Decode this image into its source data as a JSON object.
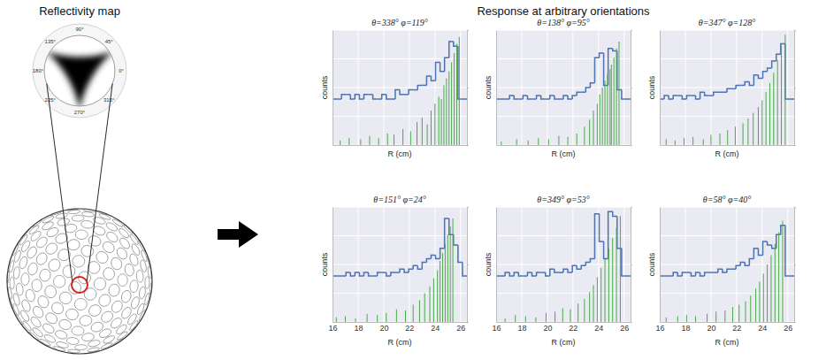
{
  "header": {
    "left_title": "Reflectivity map",
    "right_title": "Response at arbitrary orientations"
  },
  "reflectivity_map": {
    "angle_labels": [
      {
        "value": 0,
        "label": "0°"
      },
      {
        "value": 45,
        "label": "45°"
      },
      {
        "value": 90,
        "label": "90°"
      },
      {
        "value": 135,
        "label": "135°"
      },
      {
        "value": 180,
        "label": "180°"
      },
      {
        "value": 225,
        "label": "225°"
      },
      {
        "value": 270,
        "label": "270°"
      },
      {
        "value": 315,
        "label": "315°"
      }
    ]
  },
  "chart_data": [
    {
      "type": "histogram",
      "title": "θ=338°  φ=119°",
      "xlabel": "R (cm)",
      "ylabel": "counts",
      "xlim": [
        16,
        26.5
      ],
      "xticks": [
        16,
        18,
        20,
        22,
        24,
        26
      ],
      "ylim": [
        0,
        10
      ],
      "yticks": [
        0,
        2.5,
        5,
        7.5,
        10
      ],
      "y2lim": [
        -4,
        6
      ],
      "y2ticks": [
        -4,
        1,
        6
      ],
      "grid": true,
      "tick_labels": false,
      "series": [
        {
          "type": "step",
          "color": "#4c72b0",
          "axis": "y2",
          "bins": [
            16,
            16.35,
            16.7,
            17.05,
            17.4,
            17.75,
            18.1,
            18.45,
            18.8,
            19.15,
            19.5,
            19.85,
            20.2,
            20.55,
            20.9,
            21.25,
            21.6,
            21.95,
            22.3,
            22.65,
            23,
            23.35,
            23.7,
            24.05,
            24.4,
            24.75,
            25.1,
            25.45,
            25.8,
            26.15,
            26.5
          ],
          "counts": [
            0,
            0,
            0.4,
            0.4,
            0,
            0.4,
            0,
            0.4,
            0.4,
            0,
            0,
            0.4,
            0,
            0,
            0.8,
            0.4,
            0.4,
            0.8,
            0.8,
            1.2,
            1.2,
            2,
            1.6,
            3.2,
            2.4,
            3.6,
            5,
            4.6,
            0,
            0
          ]
        },
        {
          "type": "stem",
          "color": "#4aa84a",
          "x": [
            16.6,
            17.3,
            18.2,
            18.9,
            19.6,
            20.3,
            20.8,
            21.5,
            22.1,
            22.6,
            23.0,
            23.4,
            23.7,
            24.0,
            24.3,
            24.5,
            24.7,
            24.9,
            25.1,
            25.3,
            25.5,
            25.7,
            25.9
          ],
          "values": [
            0.4,
            0.6,
            0.5,
            0.8,
            0.6,
            1.0,
            0.9,
            1.4,
            1.2,
            2.0,
            2.4,
            1.8,
            3.0,
            3.6,
            4.2,
            4.0,
            5.2,
            5.8,
            6.4,
            7.2,
            8.0,
            8.8,
            9.4
          ]
        }
      ]
    },
    {
      "type": "histogram",
      "title": "θ=138°  φ=95°",
      "xlabel": "R (cm)",
      "ylabel": "counts",
      "xlim": [
        16,
        26.5
      ],
      "xticks": [
        16,
        18,
        20,
        22,
        24,
        26
      ],
      "ylim": [
        0,
        10
      ],
      "yticks": [
        0,
        2.5,
        5,
        7.5,
        10
      ],
      "y2lim": [
        -4,
        6
      ],
      "y2ticks": [
        -4,
        1,
        6
      ],
      "grid": true,
      "tick_labels": false,
      "series": [
        {
          "type": "step",
          "color": "#4c72b0",
          "axis": "y2",
          "bins": [
            16,
            16.35,
            16.7,
            17.05,
            17.4,
            17.75,
            18.1,
            18.45,
            18.8,
            19.15,
            19.5,
            19.85,
            20.2,
            20.55,
            20.9,
            21.25,
            21.6,
            21.95,
            22.3,
            22.65,
            23,
            23.35,
            23.7,
            24.05,
            24.4,
            24.75,
            25.1,
            25.45,
            25.8,
            26.15,
            26.5
          ],
          "counts": [
            0,
            0,
            0,
            0.3,
            0,
            0,
            0.3,
            0,
            0,
            0.3,
            0,
            0,
            0.3,
            0,
            0,
            0.3,
            0,
            0.3,
            0.6,
            0.6,
            1,
            1.4,
            3.6,
            4,
            1.2,
            4.4,
            4.2,
            0.8,
            0,
            0
          ]
        },
        {
          "type": "stem",
          "color": "#4aa84a",
          "x": [
            16.4,
            17.6,
            18.5,
            19.3,
            20.1,
            20.9,
            21.6,
            22.3,
            22.9,
            23.3,
            23.6,
            23.9,
            24.1,
            24.3,
            24.5,
            24.7,
            24.9,
            25.0,
            25.2,
            25.4,
            25.6
          ],
          "values": [
            0.3,
            0.5,
            0.4,
            0.6,
            0.5,
            0.8,
            0.7,
            1.0,
            1.6,
            2.2,
            3.0,
            3.6,
            4.4,
            5.0,
            5.6,
            6.2,
            6.6,
            7.0,
            7.6,
            8.4,
            9.0
          ]
        }
      ]
    },
    {
      "type": "histogram",
      "title": "θ=347°  φ=128°",
      "xlabel": "R (cm)",
      "ylabel": "counts",
      "xlim": [
        16,
        26.5
      ],
      "xticks": [
        16,
        18,
        20,
        22,
        24,
        26
      ],
      "ylim": [
        0,
        10
      ],
      "yticks": [
        0,
        2.5,
        5,
        7.5,
        10
      ],
      "y2lim": [
        -4,
        6
      ],
      "y2ticks": [
        -4,
        1,
        6
      ],
      "grid": true,
      "tick_labels": false,
      "series": [
        {
          "type": "step",
          "color": "#4c72b0",
          "axis": "y2",
          "bins": [
            16,
            16.35,
            16.7,
            17.05,
            17.4,
            17.75,
            18.1,
            18.45,
            18.8,
            19.15,
            19.5,
            19.85,
            20.2,
            20.55,
            20.9,
            21.25,
            21.6,
            21.95,
            22.3,
            22.65,
            23,
            23.35,
            23.7,
            24.05,
            24.4,
            24.75,
            25.1,
            25.45,
            25.8,
            26.15,
            26.5
          ],
          "counts": [
            0,
            0.3,
            0,
            0.3,
            0.3,
            0,
            0.3,
            0.3,
            0,
            0.6,
            0.3,
            0.3,
            0.6,
            0.6,
            0.6,
            0.9,
            0.9,
            1.2,
            1.2,
            1.5,
            1.2,
            2.1,
            1.8,
            2.4,
            2.7,
            3.3,
            3.9,
            4.8,
            0,
            0
          ]
        },
        {
          "type": "stem",
          "color": "#4aa84a",
          "x": [
            16.5,
            17.2,
            17.9,
            18.6,
            19.4,
            20.0,
            20.7,
            21.3,
            21.9,
            22.5,
            22.9,
            23.3,
            23.7,
            24.0,
            24.3,
            24.6,
            24.9,
            25.2,
            25.5,
            25.8
          ],
          "values": [
            0.5,
            0.4,
            0.6,
            0.7,
            0.5,
            0.9,
            1.0,
            1.3,
            1.6,
            1.9,
            2.3,
            2.8,
            3.3,
            3.9,
            4.6,
            5.4,
            6.3,
            7.4,
            8.6,
            9.6
          ]
        }
      ]
    },
    {
      "type": "histogram",
      "title": "θ=151°  φ=24°",
      "xlabel": "R (cm)",
      "ylabel": "counts",
      "xlim": [
        16,
        26.5
      ],
      "xticks": [
        16,
        18,
        20,
        22,
        24,
        26
      ],
      "ylim": [
        0,
        10
      ],
      "yticks": [
        0,
        2.5,
        5,
        7.5,
        10
      ],
      "y2lim": [
        -4,
        6
      ],
      "y2ticks": [
        -4,
        1,
        6
      ],
      "grid": true,
      "tick_labels": "x",
      "series": [
        {
          "type": "step",
          "color": "#4c72b0",
          "axis": "y2",
          "bins": [
            16,
            16.35,
            16.7,
            17.05,
            17.4,
            17.75,
            18.1,
            18.45,
            18.8,
            19.15,
            19.5,
            19.85,
            20.2,
            20.55,
            20.9,
            21.25,
            21.6,
            21.95,
            22.3,
            22.65,
            23,
            23.35,
            23.7,
            24.05,
            24.4,
            24.75,
            25.1,
            25.45,
            25.8,
            26.15,
            26.5
          ],
          "counts": [
            0,
            0,
            0,
            0.3,
            0,
            0.3,
            0,
            0.3,
            0,
            0,
            0.3,
            0.3,
            0,
            0.3,
            0.3,
            0.6,
            0.3,
            0.6,
            0.9,
            0.6,
            1.2,
            1.5,
            1.8,
            1.5,
            2.4,
            5,
            3.6,
            2.7,
            1.2,
            0
          ]
        },
        {
          "type": "stem",
          "color": "#4aa84a",
          "x": [
            16.3,
            17.0,
            17.8,
            18.7,
            19.5,
            20.2,
            21.0,
            21.7,
            22.3,
            22.8,
            23.2,
            23.6,
            23.9,
            24.2,
            24.4,
            24.6,
            24.8,
            25.0,
            25.2,
            25.4
          ],
          "values": [
            0.4,
            0.5,
            0.3,
            0.7,
            0.6,
            0.8,
            1.1,
            1.0,
            1.5,
            1.9,
            2.5,
            3.1,
            3.8,
            4.5,
            5.3,
            6.0,
            6.8,
            7.6,
            8.3,
            9.0
          ]
        }
      ]
    },
    {
      "type": "histogram",
      "title": "θ=349°  φ=53°",
      "xlabel": "R (cm)",
      "ylabel": "counts",
      "xlim": [
        16,
        26.5
      ],
      "xticks": [
        16,
        18,
        20,
        22,
        24,
        26
      ],
      "ylim": [
        0,
        10
      ],
      "yticks": [
        0,
        2.5,
        5,
        7.5,
        10
      ],
      "y2lim": [
        -4,
        6
      ],
      "y2ticks": [
        -4,
        1,
        6
      ],
      "grid": true,
      "tick_labels": "x",
      "series": [
        {
          "type": "step",
          "color": "#4c72b0",
          "axis": "y2",
          "bins": [
            16,
            16.35,
            16.7,
            17.05,
            17.4,
            17.75,
            18.1,
            18.45,
            18.8,
            19.15,
            19.5,
            19.85,
            20.2,
            20.55,
            20.9,
            21.25,
            21.6,
            21.95,
            22.3,
            22.65,
            23,
            23.35,
            23.7,
            24.05,
            24.4,
            24.75,
            25.1,
            25.45,
            25.8,
            26.15,
            26.5
          ],
          "counts": [
            0,
            0,
            0.3,
            0,
            0.3,
            0,
            0,
            0.3,
            0,
            0.3,
            0.3,
            0,
            0.6,
            0.3,
            0.3,
            0.6,
            0.3,
            0.9,
            0.6,
            0.9,
            1.2,
            1.5,
            5.4,
            3,
            1.5,
            5.6,
            5.2,
            2.4,
            0,
            0
          ]
        },
        {
          "type": "stem",
          "color": "#4aa84a",
          "x": [
            16.7,
            17.5,
            18.3,
            19.1,
            19.9,
            20.6,
            21.2,
            21.8,
            22.4,
            22.9,
            23.3,
            23.6,
            23.9,
            24.2,
            24.5,
            24.8,
            25.1,
            25.4,
            25.7
          ],
          "values": [
            0.3,
            0.6,
            0.5,
            0.4,
            0.8,
            0.9,
            1.2,
            1.1,
            1.6,
            2.0,
            2.6,
            3.2,
            3.9,
            4.7,
            5.5,
            6.4,
            7.3,
            8.2,
            9.2
          ]
        }
      ]
    },
    {
      "type": "histogram",
      "title": "θ=58°  φ=40°",
      "xlabel": "R (cm)",
      "ylabel": "counts",
      "xlim": [
        16,
        26.5
      ],
      "xticks": [
        16,
        18,
        20,
        22,
        24,
        26
      ],
      "ylim": [
        0,
        10
      ],
      "yticks": [
        0,
        2.5,
        5,
        7.5,
        10
      ],
      "y2lim": [
        -4,
        6
      ],
      "y2ticks": [
        -4,
        1,
        6
      ],
      "grid": true,
      "tick_labels": "x",
      "series": [
        {
          "type": "step",
          "color": "#4c72b0",
          "axis": "y2",
          "bins": [
            16,
            16.35,
            16.7,
            17.05,
            17.4,
            17.75,
            18.1,
            18.45,
            18.8,
            19.15,
            19.5,
            19.85,
            20.2,
            20.55,
            20.9,
            21.25,
            21.6,
            21.95,
            22.3,
            22.65,
            23,
            23.35,
            23.7,
            24.05,
            24.4,
            24.75,
            25.1,
            25.45,
            25.8,
            26.15,
            26.5
          ],
          "counts": [
            0,
            0,
            0,
            0.3,
            0,
            0.3,
            0.3,
            0,
            0.3,
            0,
            0.3,
            0.3,
            0.3,
            0.6,
            0.3,
            0.6,
            0.6,
            0.9,
            1.2,
            0.9,
            1.5,
            2.4,
            1.8,
            3,
            2.7,
            2.4,
            3.6,
            4.4,
            0,
            0
          ]
        },
        {
          "type": "stem",
          "color": "#4aa84a",
          "x": [
            16.5,
            17.4,
            18.1,
            18.8,
            19.7,
            20.4,
            21.1,
            21.7,
            22.2,
            22.7,
            23.1,
            23.5,
            23.8,
            24.1,
            24.4,
            24.7,
            25.0,
            25.3,
            25.6
          ],
          "values": [
            0.4,
            0.5,
            0.6,
            0.5,
            0.7,
            0.9,
            1.0,
            1.3,
            1.5,
            1.8,
            2.3,
            2.9,
            3.5,
            4.2,
            5.0,
            5.8,
            6.8,
            7.8,
            8.8
          ]
        }
      ]
    }
  ]
}
